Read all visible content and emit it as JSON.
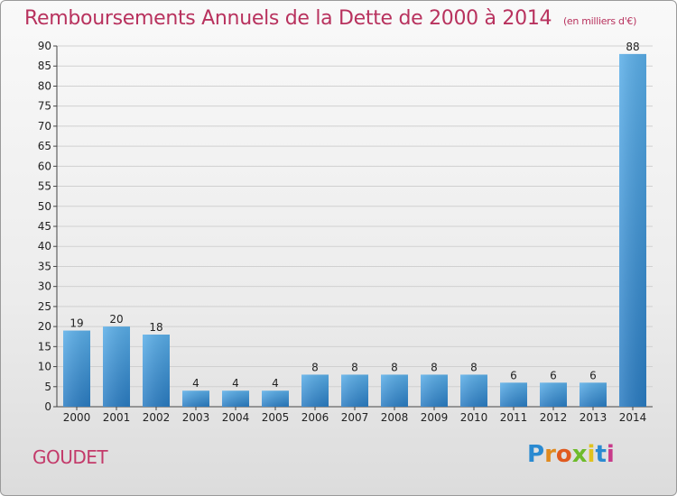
{
  "chart_title": "Remboursements Annuels de la Dette de 2000 à 2014",
  "chart_unit": "(en milliers d'€)",
  "commune_name": "GOUDET",
  "logo": {
    "text": "Proxiti",
    "letters": [
      "P",
      "r",
      "o",
      "x",
      "i",
      "t",
      "i"
    ],
    "colors": [
      "#2a8ad1",
      "#e08a1e",
      "#e05a1e",
      "#6dbb2a",
      "#e0c21e",
      "#2a8ad1",
      "#c83a8a"
    ]
  },
  "colors": {
    "title": "#b8325e",
    "bar_top": "#5aaee8",
    "bar_bottom": "#2a7cc2",
    "grid": "#d0d0d0"
  },
  "chart_data": {
    "type": "bar",
    "title": "Remboursements Annuels de la Dette de 2000 à 2014",
    "subtitle": "(en milliers d'€)",
    "categories": [
      "2000",
      "2001",
      "2002",
      "2003",
      "2004",
      "2005",
      "2006",
      "2007",
      "2008",
      "2009",
      "2010",
      "2011",
      "2012",
      "2013",
      "2014"
    ],
    "values": [
      19,
      20,
      18,
      4,
      4,
      4,
      8,
      8,
      8,
      8,
      8,
      6,
      6,
      6,
      88
    ],
    "ylim": [
      0,
      90
    ],
    "yticks": [
      0,
      5,
      10,
      15,
      20,
      25,
      30,
      35,
      40,
      45,
      50,
      55,
      60,
      65,
      70,
      75,
      80,
      85,
      90
    ],
    "grid": true,
    "xlabel": "",
    "ylabel": ""
  }
}
